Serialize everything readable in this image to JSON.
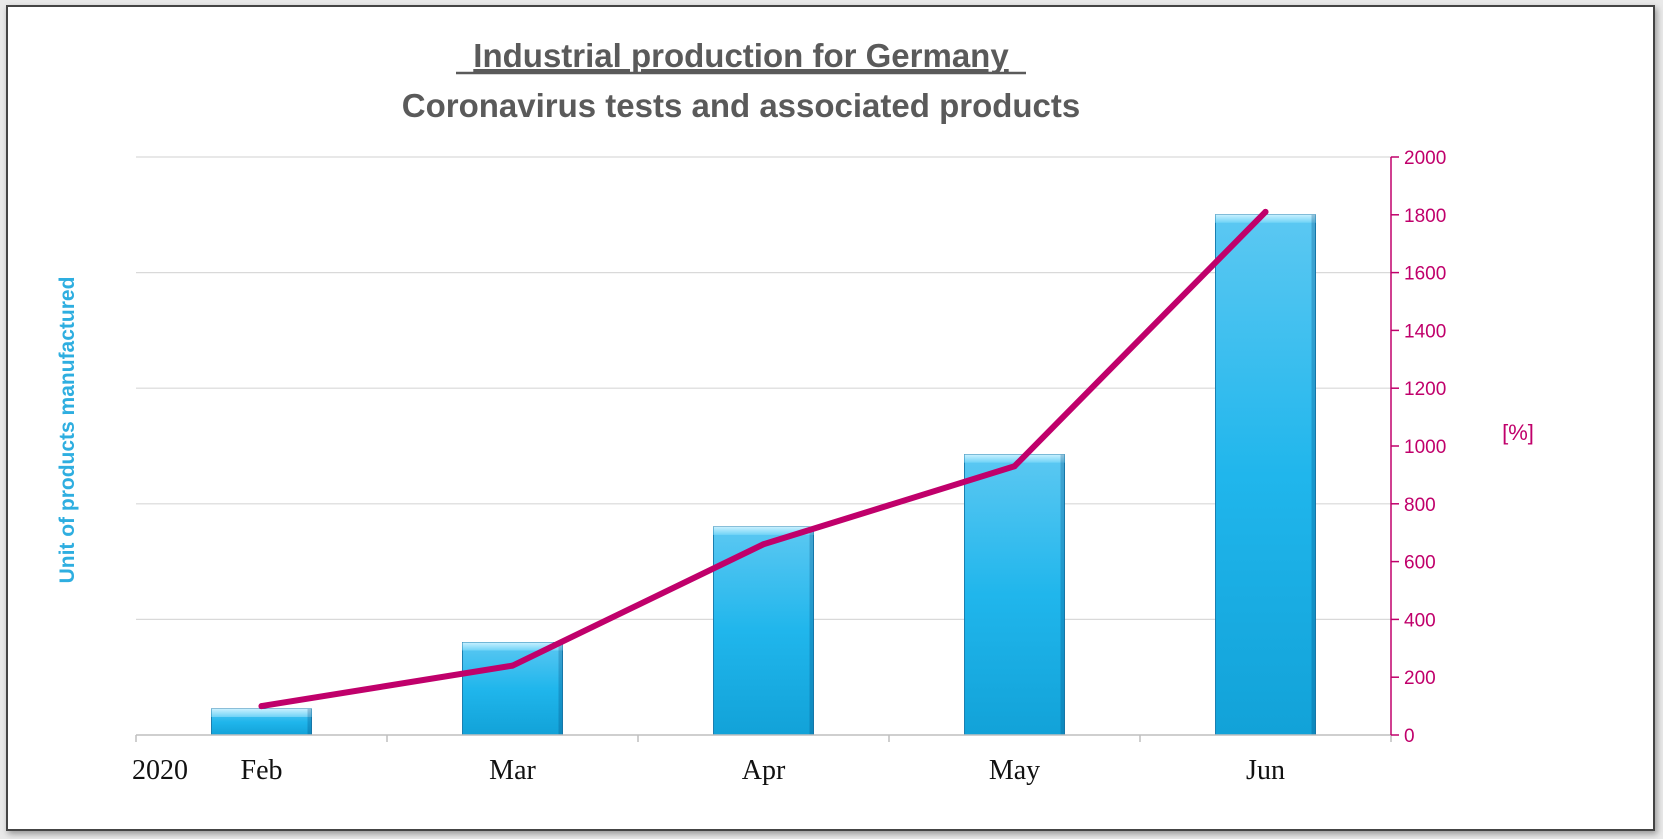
{
  "chart_data": {
    "type": "bar",
    "title": "Industrial production for Germany",
    "subtitle": "Coronavirus tests and associated products",
    "year_label": "2020",
    "categories": [
      "Feb",
      "Mar",
      "Apr",
      "May",
      "Jun"
    ],
    "series": [
      {
        "name": "",
        "kind": "bar",
        "axis": "right",
        "values": [
          90,
          320,
          720,
          970,
          1800
        ]
      },
      {
        "name": "",
        "kind": "line",
        "axis": "right",
        "values": [
          100,
          240,
          660,
          930,
          1810
        ]
      }
    ],
    "ylabel_left": "Unit of products manufactured",
    "ylabel_right": "[%]",
    "ylim_right": [
      0,
      2000
    ],
    "yticks_right": [
      "0",
      "200",
      "400",
      "600",
      "800",
      "1000",
      "1200",
      "1400",
      "1600",
      "1800",
      "2000"
    ],
    "grid": true,
    "legend": "none",
    "colors": {
      "bar": "#1fb4ea",
      "line": "#c0006b",
      "title": "#5a5a5a",
      "left_label": "#2eaee0",
      "right_axis": "#c0006b"
    }
  }
}
